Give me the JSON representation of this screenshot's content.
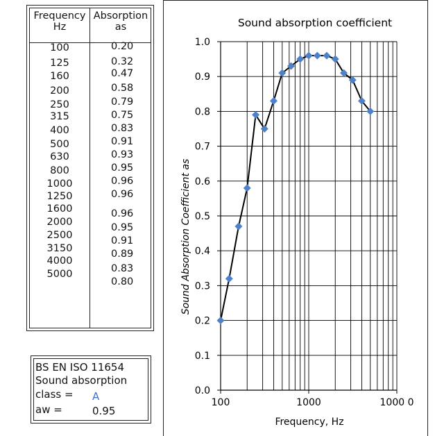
{
  "table": {
    "col1_header": [
      "Frequency",
      "Hz"
    ],
    "col2_header": [
      "Absorption",
      "as"
    ],
    "frequencies": [
      "100",
      "125",
      "160",
      "200",
      "250",
      "315",
      "400",
      "500",
      "630",
      "800",
      "1000",
      "1250",
      "1600",
      "2000",
      "2500",
      "3150",
      "4000",
      "5000"
    ],
    "absorption": [
      "0.20",
      "0.32",
      "0.47",
      "0.58",
      "0.79",
      "0.75",
      "0.83",
      "0.91",
      "0.93",
      "0.95",
      "0.96",
      "0.96",
      "0.96",
      "0.95",
      "0.91",
      "0.89",
      "0.83",
      "0.80"
    ]
  },
  "classification": {
    "line1": "BS EN ISO 11654",
    "line2": "Sound absorption",
    "class_label": "class =",
    "class_value": "A",
    "aw_label": "aw =",
    "aw_value": "0.95",
    "class_value_color": "#3a6fd8"
  },
  "chart_data": {
    "type": "line",
    "title": "Sound absorption coefficient",
    "xlabel": "Frequency, Hz",
    "ylabel": "Sound Absorption Coefficient as",
    "x_scale": "log",
    "xlim": [
      100,
      10000
    ],
    "ylim": [
      0.0,
      1.0
    ],
    "x_tick_labels": [
      "100",
      "1000",
      "1000 0"
    ],
    "y_tick_labels": [
      "0.0",
      "0.1",
      "0.2",
      "0.3",
      "0.4",
      "0.5",
      "0.6",
      "0.7",
      "0.8",
      "0.9",
      "1.0"
    ],
    "grid": true,
    "marker": "diamond",
    "marker_color": "#4f81c7",
    "line_color": "#000000",
    "series": [
      {
        "x": [
          100,
          125,
          160,
          200,
          250,
          315,
          400,
          500,
          630,
          800,
          1000,
          1250,
          1600,
          2000,
          2500,
          3150,
          4000,
          5000
        ],
        "y": [
          0.2,
          0.32,
          0.47,
          0.58,
          0.79,
          0.75,
          0.83,
          0.91,
          0.93,
          0.95,
          0.96,
          0.96,
          0.96,
          0.95,
          0.91,
          0.89,
          0.83,
          0.8
        ]
      }
    ]
  }
}
